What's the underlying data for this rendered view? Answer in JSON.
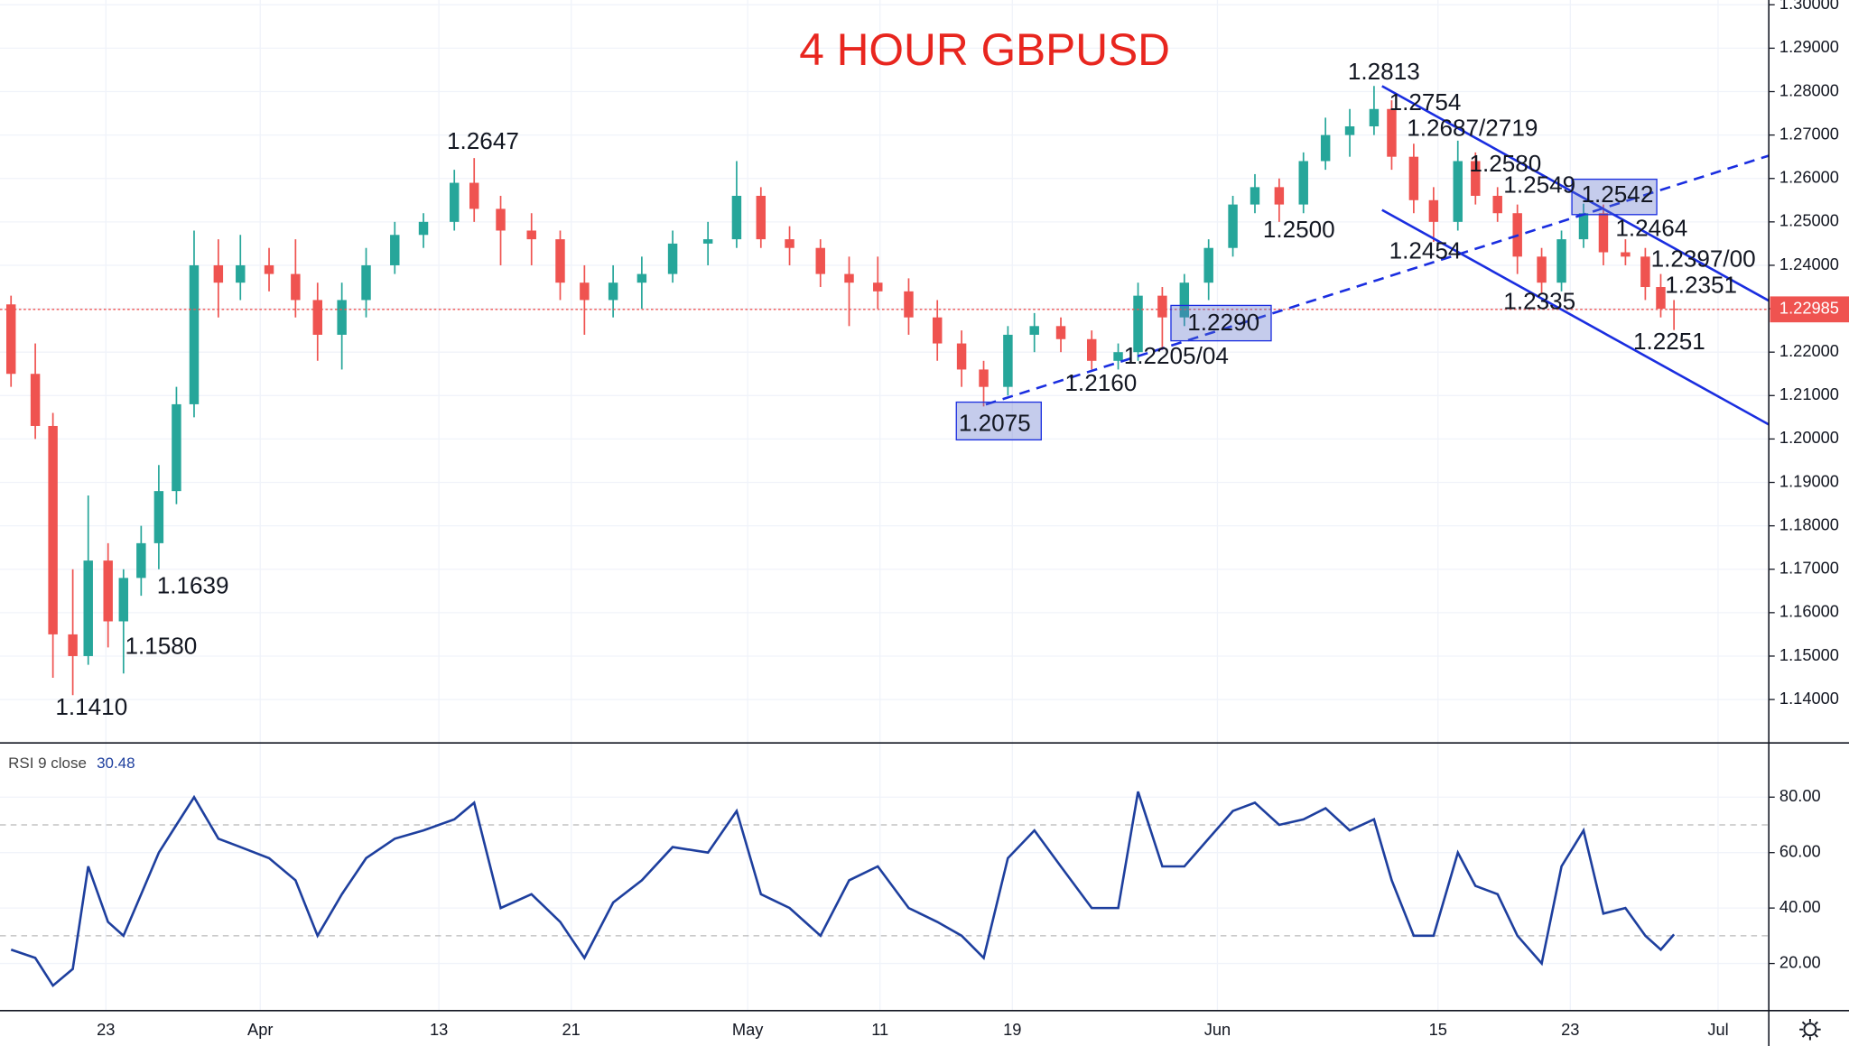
{
  "chart_data": [
    {
      "type": "candlestick",
      "title": "4 HOUR GBPUSD",
      "x": [
        -4.3,
        -3.2,
        -2.4,
        -1.5,
        -0.8,
        0.1,
        0.8,
        1.6,
        2.4,
        3.2,
        4.0,
        5.1,
        6.1,
        7.4,
        8.6,
        9.6,
        10.7,
        11.8,
        13.1,
        14.4,
        15.8,
        16.7,
        17.9,
        19.3,
        20.6,
        21.7,
        23.0,
        24.3,
        25.7,
        27.3,
        28.6,
        29.7,
        31.0,
        32.4,
        33.7,
        35.0,
        36.4,
        37.7,
        38.8,
        39.8,
        40.9,
        42.1,
        43.3,
        44.7,
        45.9,
        46.8,
        47.9,
        48.9,
        50.0,
        51.1,
        52.1,
        53.2,
        54.3,
        55.3,
        56.4,
        57.5,
        58.3,
        59.3,
        60.2,
        61.3,
        62.1,
        63.1,
        64.0,
        65.1,
        66.0,
        67.0,
        67.9,
        68.9,
        69.8,
        70.5,
        71.1
      ],
      "open": [
        1.231,
        1.215,
        1.203,
        1.155,
        1.15,
        1.172,
        1.158,
        1.168,
        1.176,
        1.188,
        1.208,
        1.24,
        1.236,
        1.24,
        1.238,
        1.232,
        1.224,
        1.232,
        1.24,
        1.247,
        1.25,
        1.259,
        1.253,
        1.248,
        1.246,
        1.236,
        1.232,
        1.236,
        1.238,
        1.245,
        1.246,
        1.256,
        1.246,
        1.244,
        1.238,
        1.236,
        1.234,
        1.228,
        1.222,
        1.216,
        1.212,
        1.224,
        1.226,
        1.223,
        1.218,
        1.22,
        1.233,
        1.228,
        1.236,
        1.244,
        1.254,
        1.258,
        1.254,
        1.264,
        1.27,
        1.272,
        1.276,
        1.265,
        1.255,
        1.25,
        1.264,
        1.256,
        1.252,
        1.242,
        1.236,
        1.246,
        1.252,
        1.243,
        1.242,
        1.235,
        1.23
      ],
      "high": [
        1.233,
        1.222,
        1.206,
        1.17,
        1.187,
        1.176,
        1.17,
        1.18,
        1.194,
        1.212,
        1.248,
        1.246,
        1.247,
        1.244,
        1.246,
        1.236,
        1.236,
        1.244,
        1.25,
        1.252,
        1.262,
        1.2647,
        1.256,
        1.252,
        1.248,
        1.24,
        1.24,
        1.242,
        1.248,
        1.25,
        1.264,
        1.258,
        1.249,
        1.246,
        1.242,
        1.242,
        1.237,
        1.232,
        1.225,
        1.218,
        1.226,
        1.229,
        1.228,
        1.225,
        1.222,
        1.236,
        1.235,
        1.238,
        1.246,
        1.256,
        1.261,
        1.26,
        1.266,
        1.274,
        1.276,
        1.2813,
        1.278,
        1.268,
        1.258,
        1.2687,
        1.266,
        1.258,
        1.254,
        1.244,
        1.248,
        1.2542,
        1.254,
        1.246,
        1.244,
        1.238,
        1.232
      ],
      "low": [
        1.212,
        1.2,
        1.145,
        1.141,
        1.148,
        1.152,
        1.146,
        1.1639,
        1.17,
        1.185,
        1.205,
        1.228,
        1.232,
        1.234,
        1.228,
        1.218,
        1.216,
        1.228,
        1.238,
        1.244,
        1.248,
        1.25,
        1.24,
        1.24,
        1.232,
        1.224,
        1.228,
        1.23,
        1.236,
        1.24,
        1.244,
        1.244,
        1.24,
        1.235,
        1.226,
        1.23,
        1.224,
        1.218,
        1.212,
        1.2075,
        1.21,
        1.22,
        1.22,
        1.216,
        1.216,
        1.218,
        1.2205,
        1.226,
        1.232,
        1.242,
        1.252,
        1.25,
        1.252,
        1.262,
        1.265,
        1.27,
        1.262,
        1.252,
        1.2454,
        1.248,
        1.254,
        1.25,
        1.238,
        1.2335,
        1.234,
        1.244,
        1.24,
        1.24,
        1.232,
        1.228,
        1.2251
      ],
      "close": [
        1.215,
        1.203,
        1.155,
        1.15,
        1.172,
        1.158,
        1.168,
        1.176,
        1.188,
        1.208,
        1.24,
        1.236,
        1.24,
        1.238,
        1.232,
        1.224,
        1.232,
        1.24,
        1.247,
        1.25,
        1.259,
        1.253,
        1.248,
        1.246,
        1.236,
        1.232,
        1.236,
        1.238,
        1.245,
        1.246,
        1.256,
        1.246,
        1.244,
        1.238,
        1.236,
        1.234,
        1.228,
        1.222,
        1.216,
        1.212,
        1.224,
        1.226,
        1.223,
        1.218,
        1.22,
        1.233,
        1.228,
        1.236,
        1.244,
        1.254,
        1.258,
        1.254,
        1.264,
        1.27,
        1.272,
        1.276,
        1.265,
        1.255,
        1.25,
        1.264,
        1.256,
        1.252,
        1.242,
        1.236,
        1.246,
        1.252,
        1.243,
        1.242,
        1.235,
        1.23,
        1.2299
      ],
      "up_color": "#26a69a",
      "down_color": "#ef5350",
      "xlim": [
        -4.8,
        75.4
      ],
      "xticks": [
        {
          "value": 0,
          "label": "23"
        },
        {
          "value": 7.0,
          "label": "Apr"
        },
        {
          "value": 15.1,
          "label": "13"
        },
        {
          "value": 21.1,
          "label": "21"
        },
        {
          "value": 29.1,
          "label": "May"
        },
        {
          "value": 35.1,
          "label": "11"
        },
        {
          "value": 41.1,
          "label": "19"
        },
        {
          "value": 50.4,
          "label": "Jun"
        },
        {
          "value": 60.4,
          "label": "15"
        },
        {
          "value": 66.4,
          "label": "23"
        },
        {
          "value": 73.1,
          "label": "Jul"
        }
      ],
      "ylim": [
        1.13,
        1.3011
      ],
      "yticks": [
        {
          "value": 1.14,
          "label": "1.14000"
        },
        {
          "value": 1.15,
          "label": "1.15000"
        },
        {
          "value": 1.16,
          "label": "1.16000"
        },
        {
          "value": 1.17,
          "label": "1.17000"
        },
        {
          "value": 1.18,
          "label": "1.18000"
        },
        {
          "value": 1.19,
          "label": "1.19000"
        },
        {
          "value": 1.2,
          "label": "1.20000"
        },
        {
          "value": 1.21,
          "label": "1.21000"
        },
        {
          "value": 1.22,
          "label": "1.22000"
        },
        {
          "value": 1.23,
          "label": "1.23000"
        },
        {
          "value": 1.24,
          "label": "1.24000"
        },
        {
          "value": 1.25,
          "label": "1.25000"
        },
        {
          "value": 1.26,
          "label": "1.26000"
        },
        {
          "value": 1.27,
          "label": "1.27000"
        },
        {
          "value": 1.28,
          "label": "1.28000"
        },
        {
          "value": 1.29,
          "label": "1.29000"
        },
        {
          "value": 1.3,
          "label": "1.30000"
        }
      ],
      "last_price": 1.22985,
      "last_price_label": "1.22985",
      "grid": true,
      "annotations": [
        "1.2813",
        "1.2754",
        "1.2687/2719",
        "1.2647",
        "1.2580",
        "1.2549",
        "1.2542",
        "1.2464",
        "1.2500",
        "1.2454",
        "1.2397/00",
        "1.2351",
        "1.2335",
        "1.2290",
        "1.2251",
        "1.2205/04",
        "1.2160",
        "1.2075",
        "1.1639",
        "1.1580",
        "1.1410"
      ]
    },
    {
      "type": "line",
      "title": "RSI 9 close",
      "last_value": 30.48,
      "color": "#1e3f9e",
      "x": [
        -4.3,
        -3.2,
        -2.4,
        -1.5,
        -0.8,
        0.1,
        0.8,
        1.6,
        2.4,
        3.2,
        4.0,
        5.1,
        6.1,
        7.4,
        8.6,
        9.6,
        10.7,
        11.8,
        13.1,
        14.4,
        15.8,
        16.7,
        17.9,
        19.3,
        20.6,
        21.7,
        23.0,
        24.3,
        25.7,
        27.3,
        28.6,
        29.7,
        31.0,
        32.4,
        33.7,
        35.0,
        36.4,
        37.7,
        38.8,
        39.8,
        40.9,
        42.1,
        43.3,
        44.7,
        45.9,
        46.8,
        47.9,
        48.9,
        50.0,
        51.1,
        52.1,
        53.2,
        54.3,
        55.3,
        56.4,
        57.5,
        58.3,
        59.3,
        60.2,
        61.3,
        62.1,
        63.1,
        64.0,
        65.1,
        66.0,
        67.0,
        67.9,
        68.9,
        69.8,
        70.5,
        71.1
      ],
      "values": [
        25,
        22,
        12,
        18,
        55,
        35,
        30,
        45,
        60,
        70,
        80,
        65,
        62,
        58,
        50,
        30,
        45,
        58,
        65,
        68,
        72,
        78,
        40,
        45,
        35,
        22,
        42,
        50,
        62,
        60,
        75,
        45,
        40,
        30,
        50,
        55,
        40,
        35,
        30,
        22,
        58,
        68,
        55,
        40,
        40,
        82,
        55,
        55,
        65,
        75,
        78,
        70,
        72,
        76,
        68,
        72,
        50,
        30,
        30,
        60,
        48,
        45,
        30,
        20,
        55,
        68,
        38,
        40,
        30,
        25,
        30.48
      ],
      "xlim": [
        -4.8,
        75.4
      ],
      "ylim": [
        3,
        98.7
      ],
      "yticks": [
        {
          "value": 20,
          "label": "20.00"
        },
        {
          "value": 40,
          "label": "40.00"
        },
        {
          "value": 60,
          "label": "60.00"
        },
        {
          "value": 80,
          "label": "80.00"
        }
      ],
      "levels": [
        30,
        70
      ]
    }
  ]
}
